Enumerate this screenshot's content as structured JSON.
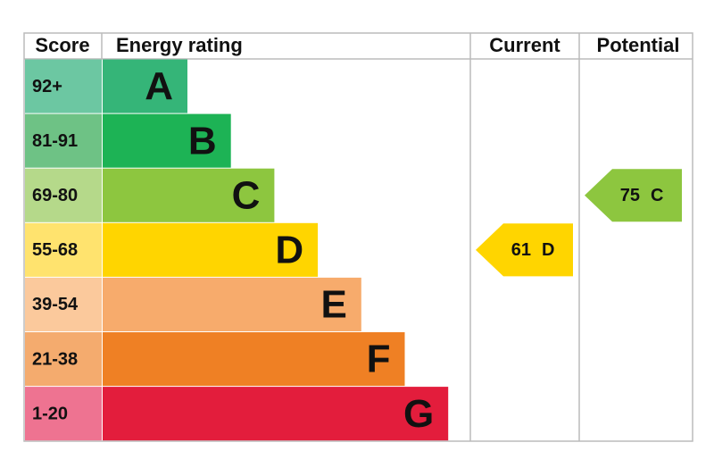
{
  "header": {
    "score": "Score",
    "rating": "Energy rating",
    "current": "Current",
    "potential": "Potential"
  },
  "bands": [
    {
      "score": "92+",
      "letter": "A",
      "color": "#35b578",
      "score_color": "#6cc7a2"
    },
    {
      "score": "81-91",
      "letter": "B",
      "color": "#1db355",
      "score_color": "#6ec285"
    },
    {
      "score": "69-80",
      "letter": "C",
      "color": "#8dc63f",
      "score_color": "#b5d98a"
    },
    {
      "score": "55-68",
      "letter": "D",
      "color": "#ffd500",
      "score_color": "#ffe36e"
    },
    {
      "score": "39-54",
      "letter": "E",
      "color": "#f7ab6c",
      "score_color": "#fbc99c"
    },
    {
      "score": "21-38",
      "letter": "F",
      "color": "#ef8024",
      "score_color": "#f4ab6e"
    },
    {
      "score": "1-20",
      "letter": "G",
      "color": "#e31d3c",
      "score_color": "#ee7391"
    }
  ],
  "current": {
    "score": 61,
    "letter": "D"
  },
  "potential": {
    "score": 75,
    "letter": "C"
  }
}
